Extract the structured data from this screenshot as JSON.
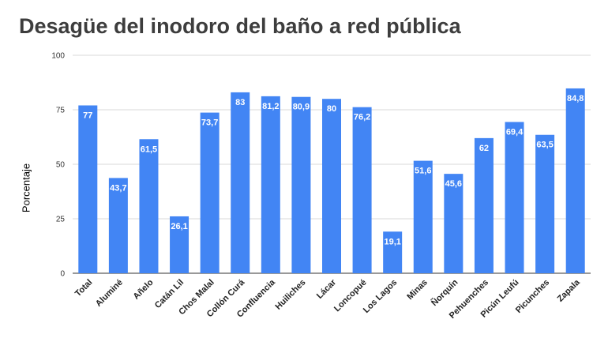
{
  "chart_data": {
    "type": "bar",
    "title": "Desagüe del inodoro del baño a red pública",
    "xlabel": "",
    "ylabel": "Porcentaje",
    "ylim": [
      0,
      100
    ],
    "yticks": [
      "0",
      "25",
      "50",
      "75",
      "100"
    ],
    "grid": true,
    "legend": "none",
    "bar_color": "#4285f4",
    "categories": [
      "Total",
      "Aluminé",
      "Añelo",
      "Catán Lil",
      "Chos Malal",
      "Collón Curá",
      "Confluencia",
      "Huiliches",
      "Lácar",
      "Loncopué",
      "Los Lagos",
      "Minas",
      "Ñorquín",
      "Pehuenches",
      "Picún Leufú",
      "Picunches",
      "Zapala"
    ],
    "values": [
      77,
      43.7,
      61.5,
      26.1,
      73.7,
      83,
      81.2,
      80.9,
      80,
      76.2,
      19.1,
      51.6,
      45.6,
      62,
      69.4,
      63.5,
      84.8
    ],
    "data_labels": [
      "77",
      "43,7",
      "61,5",
      "26,1",
      "73,7",
      "83",
      "81,2",
      "80,9",
      "80",
      "76,2",
      "19,1",
      "51,6",
      "45,6",
      "62",
      "69,4",
      "63,5",
      "84,8"
    ]
  }
}
